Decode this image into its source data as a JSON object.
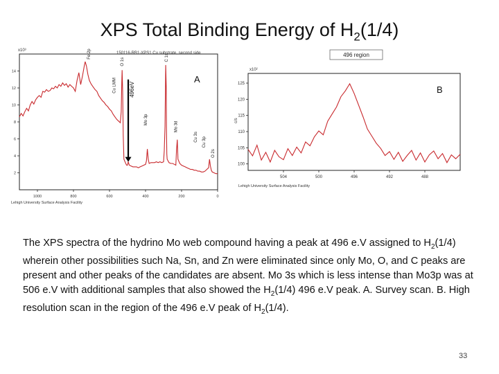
{
  "slide": {
    "title_main": "XPS Total Binding Energy of H",
    "title_sub": "2",
    "title_tail": "(1/4)",
    "caption_parts": [
      "The XPS spectra of the hydrino Mo web compound having a peak at 496 e.V assigned to H",
      "2",
      "(1/4) wherein other possibilities such Na, Sn, and Zn were eliminated since only Mo, O, and C peaks are present and other peaks of the candidates are absent.  Mo 3s which is less intense than Mo3p was at 506 e.V with additional samples that also showed the H",
      "2",
      "(1/4) 496 e.V peak.  A.  Survey scan.  B.  High resolution scan in the region of the 496 e.V peak of H",
      "2",
      "(1/4)."
    ],
    "page_number": "33"
  },
  "colors": {
    "spectrum": "#c8282c",
    "axis": "#222222",
    "arrow": "#000000"
  },
  "chart_data": [
    {
      "type": "line",
      "panel_label": "A",
      "title": "150116-RB1-XPS1  Cu substrate,  second side",
      "facility": "Lehigh University Surface Analysis Facility",
      "ylabel_exponent": "x10³",
      "x_reversed": true,
      "xlim": [
        1100,
        0
      ],
      "ylim": [
        0,
        16
      ],
      "x_ticks": [
        "1000",
        "800",
        "600",
        "400",
        "200",
        "0"
      ],
      "x_tick_values": [
        1000,
        800,
        600,
        400,
        200,
        0
      ],
      "y_ticks": [
        "2",
        "4",
        "6",
        "8",
        "10",
        "12",
        "14"
      ],
      "y_tick_values": [
        2,
        4,
        6,
        8,
        10,
        12,
        14
      ],
      "series": [
        {
          "name": "survey",
          "x": [
            1100,
            1090,
            1080,
            1070,
            1060,
            1050,
            1040,
            1030,
            1020,
            1010,
            1000,
            990,
            980,
            970,
            960,
            950,
            940,
            930,
            920,
            910,
            900,
            890,
            880,
            870,
            860,
            850,
            840,
            830,
            820,
            810,
            800,
            790,
            780,
            770,
            760,
            750,
            740,
            735,
            728,
            720,
            712,
            705,
            700,
            690,
            680,
            670,
            660,
            650,
            640,
            630,
            620,
            610,
            600,
            590,
            580,
            570,
            560,
            550,
            540,
            535,
            532,
            530,
            527,
            524,
            520,
            510,
            505,
            500,
            496,
            490,
            480,
            470,
            460,
            450,
            440,
            430,
            420,
            410,
            400,
            395,
            390,
            385,
            380,
            370,
            360,
            350,
            340,
            330,
            320,
            310,
            300,
            296,
            292,
            288,
            285,
            284,
            282,
            280,
            275,
            270,
            260,
            250,
            240,
            232,
            228,
            224,
            220,
            210,
            200,
            190,
            180,
            170,
            160,
            150,
            140,
            130,
            120,
            110,
            100,
            90,
            80,
            70,
            60,
            50,
            45,
            40,
            35,
            30,
            20,
            10,
            0
          ],
          "y": [
            8.6,
            9.0,
            8.7,
            9.2,
            9.6,
            9.3,
            10.0,
            10.4,
            10.1,
            10.6,
            10.9,
            11.1,
            10.9,
            11.6,
            11.5,
            11.8,
            11.6,
            11.7,
            12.0,
            11.9,
            12.2,
            12.0,
            12.4,
            12.2,
            12.6,
            12.3,
            12.5,
            12.1,
            12.4,
            12.2,
            12.0,
            11.6,
            12.9,
            13.8,
            12.4,
            13.4,
            14.6,
            15.1,
            14.6,
            13.6,
            12.9,
            12.6,
            12.4,
            12.1,
            11.8,
            11.6,
            11.1,
            10.8,
            10.5,
            10.3,
            10.0,
            9.8,
            9.5,
            9.3,
            8.9,
            8.6,
            8.3,
            8.1,
            7.9,
            9.2,
            12.6,
            14.1,
            11.6,
            6.4,
            3.6,
            3.1,
            2.9,
            2.9,
            3.3,
            2.9,
            2.8,
            2.7,
            2.7,
            2.7,
            2.6,
            2.7,
            2.8,
            2.9,
            3.0,
            3.4,
            4.8,
            3.6,
            3.1,
            3.2,
            3.2,
            3.2,
            3.3,
            3.2,
            3.3,
            3.2,
            3.3,
            4.6,
            7.5,
            14.7,
            12.0,
            7.2,
            4.2,
            3.6,
            3.4,
            3.2,
            3.1,
            3.1,
            3.0,
            2.9,
            4.7,
            5.9,
            3.6,
            3.1,
            2.9,
            2.8,
            2.7,
            2.6,
            2.5,
            2.4,
            2.4,
            2.3,
            2.3,
            2.2,
            2.2,
            2.1,
            2.1,
            2.2,
            2.4,
            2.6,
            3.6,
            2.8,
            2.3,
            2.1,
            2.0,
            1.9,
            1.9
          ]
        }
      ],
      "peak_labels": [
        {
          "text": "Fe 2p",
          "x": 715,
          "y": 15.2
        },
        {
          "text": "Cu LMM",
          "x": 575,
          "y": 11.2
        },
        {
          "text": "O 1s",
          "x": 531,
          "y": 14.4
        },
        {
          "text": "Mo 3p",
          "x": 400,
          "y": 7.4
        },
        {
          "text": "C 1s",
          "x": 285,
          "y": 14.9
        },
        {
          "text": "Mo 3d",
          "x": 232,
          "y": 6.6
        },
        {
          "text": "Cu 3s",
          "x": 123,
          "y": 5.4
        },
        {
          "text": "Cu 3p",
          "x": 77,
          "y": 4.8
        },
        {
          "text": "O 2s",
          "x": 26,
          "y": 3.6
        }
      ],
      "annotation": {
        "text": "496eV",
        "x": 496,
        "arrow_from_y": 13.0,
        "arrow_to_y": 3.3
      }
    },
    {
      "type": "line",
      "panel_label": "B",
      "region_label": "496 region",
      "facility": "Lehigh University Surface Analysis Facility",
      "ylabel": "c/s",
      "ylabel_exponent": "x10²",
      "x_reversed": true,
      "xlim": [
        508,
        484
      ],
      "ylim": [
        98,
        128
      ],
      "x_ticks": [
        "504",
        "500",
        "496",
        "492",
        "488"
      ],
      "x_tick_values": [
        504,
        500,
        496,
        492,
        488
      ],
      "y_ticks": [
        "100",
        "105",
        "110",
        "115",
        "120",
        "125"
      ],
      "y_tick_values": [
        100,
        105,
        110,
        115,
        120,
        125
      ],
      "series": [
        {
          "name": "496 region",
          "x": [
            508,
            507.5,
            507,
            506.5,
            506,
            505.5,
            505,
            504.5,
            504,
            503.5,
            503,
            502.5,
            502,
            501.5,
            501,
            500.5,
            500,
            499.5,
            499,
            498.5,
            498,
            497.5,
            497,
            496.5,
            496,
            495.5,
            495,
            494.5,
            494,
            493.5,
            493,
            492.5,
            492,
            491.5,
            491,
            490.5,
            490,
            489.5,
            489,
            488.5,
            488,
            487.5,
            487,
            486.5,
            486,
            485.5,
            485,
            484.5,
            484
          ],
          "y": [
            104.5,
            102.5,
            105.8,
            101.2,
            103.6,
            100.6,
            104.2,
            102.2,
            101.3,
            104.7,
            102.6,
            105.2,
            103.4,
            106.8,
            105.6,
            108.4,
            110.2,
            109.0,
            113.2,
            115.4,
            117.6,
            120.8,
            122.6,
            124.8,
            121.8,
            118.2,
            114.6,
            110.8,
            108.6,
            106.4,
            104.8,
            102.6,
            103.8,
            101.4,
            103.6,
            100.8,
            102.6,
            104.2,
            101.2,
            103.4,
            100.6,
            102.8,
            104.0,
            101.6,
            103.2,
            100.4,
            102.8,
            101.6,
            103.0
          ]
        }
      ]
    }
  ]
}
